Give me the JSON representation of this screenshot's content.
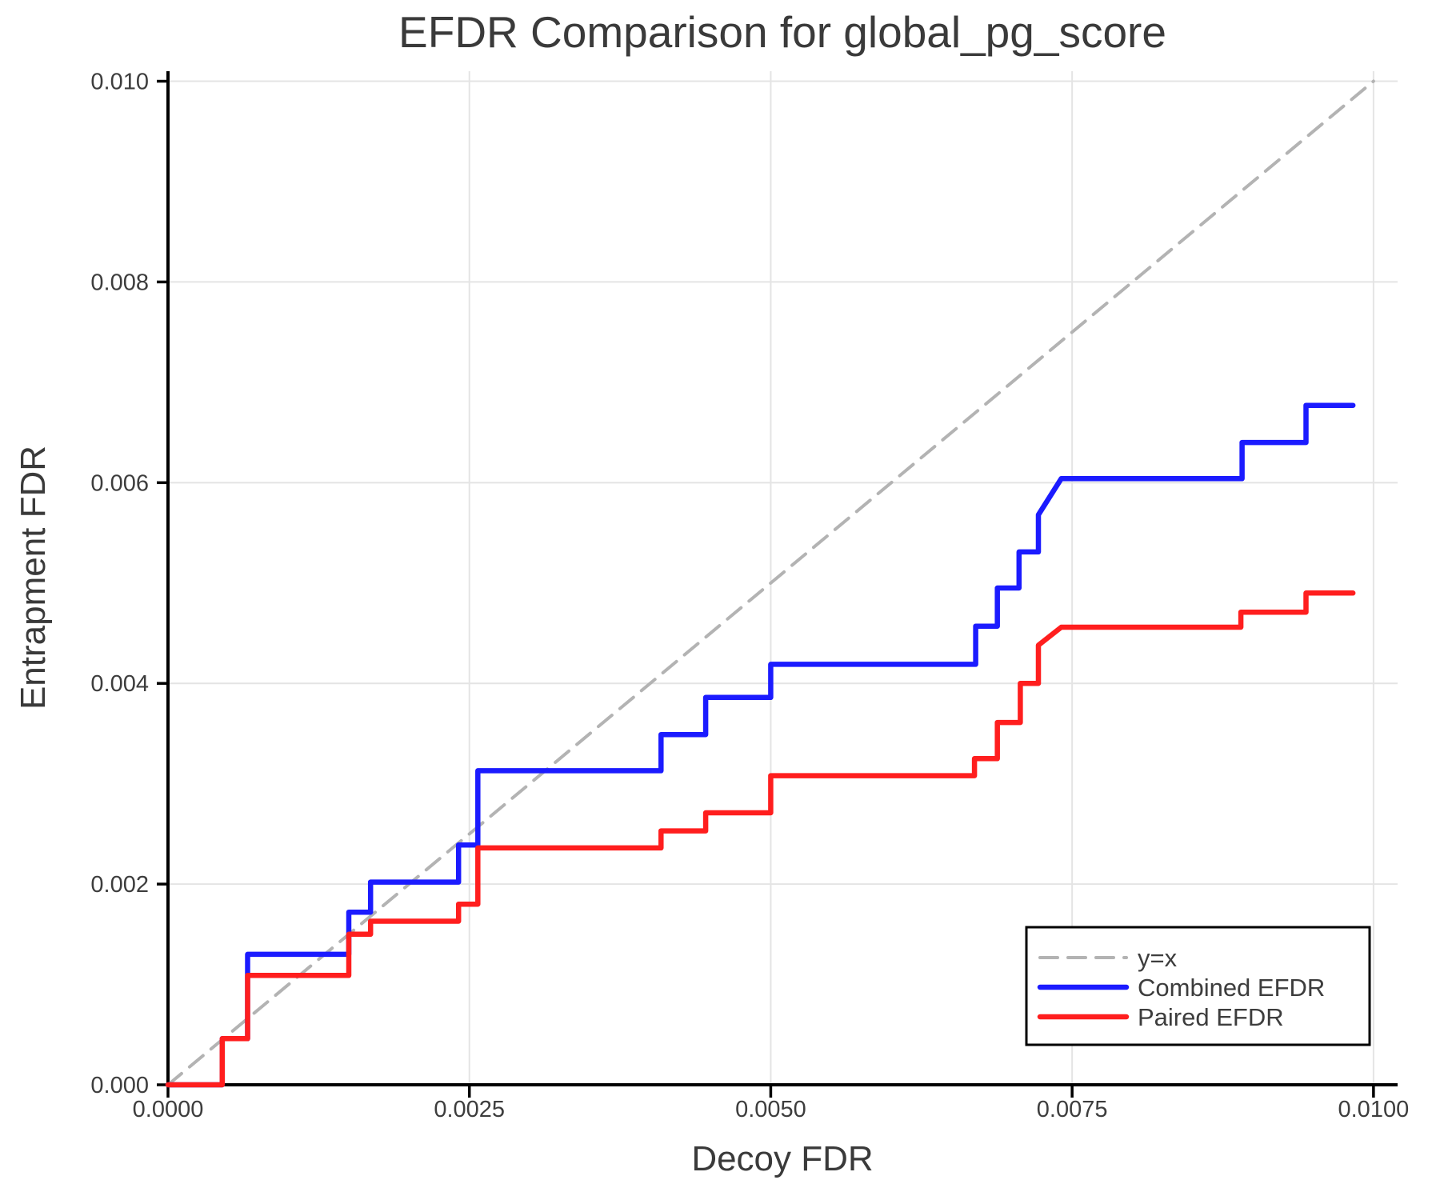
{
  "chart_data": {
    "type": "line",
    "subtype": "step-curves",
    "title": "EFDR Comparison for global_pg_score",
    "xlabel": "Decoy FDR",
    "ylabel": "Entrapment FDR",
    "xlim": [
      0,
      0.0102
    ],
    "ylim": [
      0,
      0.0101
    ],
    "grid": true,
    "legend_position": "lower right",
    "xticks": {
      "values": [
        0,
        0.0025,
        0.005,
        0.0075,
        0.01
      ],
      "labels": [
        "0.0000",
        "0.0025",
        "0.0050",
        "0.0075",
        "0.0100"
      ]
    },
    "yticks": {
      "values": [
        0,
        0.002,
        0.004,
        0.006,
        0.008,
        0.01
      ],
      "labels": [
        "0.000",
        "0.002",
        "0.004",
        "0.006",
        "0.008",
        "0.010"
      ]
    },
    "colors": {
      "combined": "#1b1bff",
      "paired": "#ff1e1e",
      "identity": "#b3b3b3",
      "grid": "#e4e4e4",
      "axis": "#000000",
      "text": "#3d3d3d",
      "background": "#ffffff"
    },
    "series": [
      {
        "name": "y=x",
        "role": "identity",
        "color": "#b3b3b3",
        "dash": true,
        "points": [
          [
            0,
            0
          ],
          [
            0.01,
            0.01
          ]
        ]
      },
      {
        "name": "Combined EFDR",
        "role": "combined-efdr",
        "color": "#1b1bff",
        "dash": false,
        "points": [
          [
            0.0,
            0.0
          ],
          [
            0.00045,
            0.0
          ],
          [
            0.00045,
            0.00046
          ],
          [
            0.00066,
            0.00046
          ],
          [
            0.00066,
            0.0013
          ],
          [
            0.0015,
            0.0013
          ],
          [
            0.0015,
            0.00172
          ],
          [
            0.00168,
            0.00172
          ],
          [
            0.00168,
            0.00202
          ],
          [
            0.00241,
            0.00202
          ],
          [
            0.00241,
            0.00239
          ],
          [
            0.00257,
            0.00239
          ],
          [
            0.00257,
            0.00313
          ],
          [
            0.00409,
            0.00313
          ],
          [
            0.00409,
            0.00349
          ],
          [
            0.00446,
            0.00349
          ],
          [
            0.00446,
            0.00386
          ],
          [
            0.005,
            0.00386
          ],
          [
            0.005,
            0.00419
          ],
          [
            0.0067,
            0.00419
          ],
          [
            0.0067,
            0.00457
          ],
          [
            0.00688,
            0.00457
          ],
          [
            0.00688,
            0.00495
          ],
          [
            0.00706,
            0.00495
          ],
          [
            0.00706,
            0.00531
          ],
          [
            0.00722,
            0.00531
          ],
          [
            0.00722,
            0.00568
          ],
          [
            0.00741,
            0.00604
          ],
          [
            0.00891,
            0.00604
          ],
          [
            0.00891,
            0.0064
          ],
          [
            0.00944,
            0.0064
          ],
          [
            0.00944,
            0.00677
          ],
          [
            0.00983,
            0.00677
          ]
        ]
      },
      {
        "name": "Paired EFDR",
        "role": "paired-efdr",
        "color": "#ff1e1e",
        "dash": false,
        "points": [
          [
            0.0,
            0.0
          ],
          [
            0.00045,
            0.0
          ],
          [
            0.00045,
            0.00046
          ],
          [
            0.00066,
            0.00046
          ],
          [
            0.00066,
            0.00109
          ],
          [
            0.0015,
            0.00109
          ],
          [
            0.0015,
            0.0015
          ],
          [
            0.00168,
            0.0015
          ],
          [
            0.00168,
            0.00163
          ],
          [
            0.00241,
            0.00163
          ],
          [
            0.00241,
            0.0018
          ],
          [
            0.00257,
            0.0018
          ],
          [
            0.00257,
            0.00236
          ],
          [
            0.00409,
            0.00236
          ],
          [
            0.00409,
            0.00253
          ],
          [
            0.00446,
            0.00253
          ],
          [
            0.00446,
            0.00271
          ],
          [
            0.005,
            0.00271
          ],
          [
            0.005,
            0.00308
          ],
          [
            0.00669,
            0.00308
          ],
          [
            0.00669,
            0.00325
          ],
          [
            0.00688,
            0.00325
          ],
          [
            0.00688,
            0.00361
          ],
          [
            0.00707,
            0.00361
          ],
          [
            0.00707,
            0.004
          ],
          [
            0.00722,
            0.004
          ],
          [
            0.00722,
            0.00438
          ],
          [
            0.00741,
            0.00456
          ],
          [
            0.0089,
            0.00456
          ],
          [
            0.0089,
            0.00471
          ],
          [
            0.00944,
            0.00471
          ],
          [
            0.00944,
            0.0049
          ],
          [
            0.00983,
            0.0049
          ]
        ]
      }
    ]
  }
}
